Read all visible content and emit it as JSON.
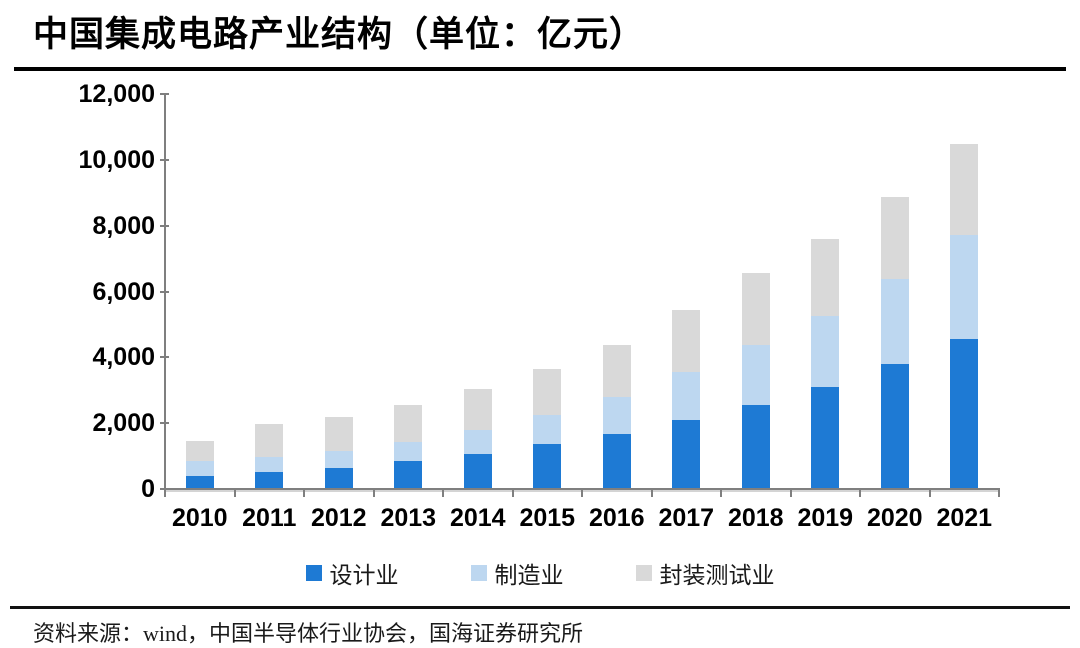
{
  "page": {
    "title": "中国集成电路产业结构（单位：亿元）",
    "source_note": "资料来源：wind，中国半导体行业协会，国海证券研究所"
  },
  "chart_data": {
    "type": "bar",
    "stacked": true,
    "title": "中国集成电路产业结构（单位：亿元）",
    "xlabel": "",
    "ylabel": "",
    "unit": "亿元",
    "categories": [
      "2010",
      "2011",
      "2012",
      "2013",
      "2014",
      "2015",
      "2016",
      "2017",
      "2018",
      "2019",
      "2020",
      "2021"
    ],
    "series": [
      {
        "name": "设计业",
        "color": "#1e7ad4",
        "values": [
          363.9,
          473.7,
          621.7,
          808.8,
          1047.4,
          1325.0,
          1644.3,
          2073.5,
          2519.3,
          3063.5,
          3778.4,
          4519.0
        ]
      },
      {
        "name": "制造业",
        "color": "#bdd7f0",
        "values": [
          447.1,
          473.1,
          501.1,
          601.2,
          712.1,
          900.8,
          1126.9,
          1448.1,
          1818.2,
          2149.1,
          2560.1,
          3176.3
        ]
      },
      {
        "name": "封装测试业",
        "color": "#d9d9d9",
        "values": [
          629.2,
          986.9,
          1035.7,
          1098.5,
          1255.9,
          1384.0,
          1564.3,
          1889.7,
          2193.9,
          2349.7,
          2509.5,
          2763.0
        ]
      }
    ],
    "totals": [
      1440.2,
      1933.7,
      2158.5,
      2508.5,
      3015.4,
      3609.8,
      4335.5,
      5411.3,
      6531.4,
      7562.3,
      8848.0,
      10458.3
    ],
    "ylim": [
      0,
      12000
    ],
    "ytick_interval": 2000,
    "ytick_labels": [
      "12,000",
      "10,000",
      "8,000",
      "6,000",
      "4,000",
      "2,000",
      "0"
    ],
    "grid": false,
    "legend_position": "bottom",
    "axis_color": "#7f7f7f"
  }
}
